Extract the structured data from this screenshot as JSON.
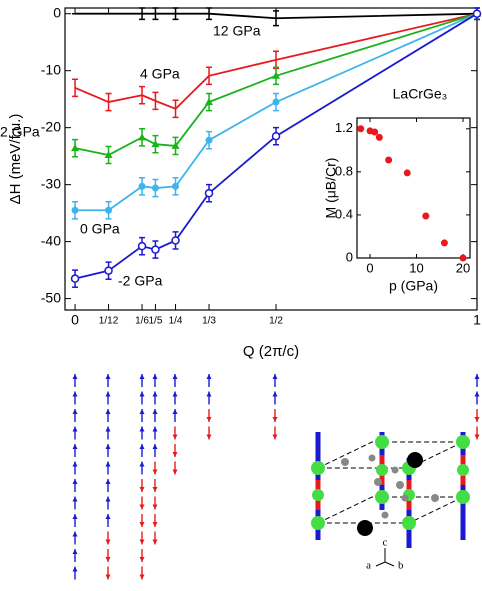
{
  "chart_data": [
    {
      "type": "line",
      "x": [
        0,
        0.08333,
        0.16667,
        0.2,
        0.25,
        0.33333,
        0.5,
        1
      ],
      "xlim": [
        -0.025,
        1
      ],
      "xticks": [
        {
          "value": 0,
          "label": "0"
        },
        {
          "value": 0.08333,
          "label": "1/12"
        },
        {
          "value": 0.16667,
          "label": "1/6"
        },
        {
          "value": 0.2,
          "label": "1/5"
        },
        {
          "value": 0.25,
          "label": "1/4"
        },
        {
          "value": 0.33333,
          "label": "1/3"
        },
        {
          "value": 0.5,
          "label": "1/2"
        },
        {
          "value": 1,
          "label": "1"
        }
      ],
      "ylim": [
        -52,
        1
      ],
      "yticks": [
        0,
        -10,
        -20,
        -30,
        -40,
        -50
      ],
      "xlabel": "Q (2π/c)",
      "ylabel": "ΔH (meV/f.u.)",
      "series": [
        {
          "name": "12 GPa",
          "color": "#000000",
          "marker": "none",
          "values": [
            0,
            0,
            0,
            0,
            0,
            0,
            -0.8,
            0
          ],
          "errors": [
            0,
            0,
            1,
            1,
            1,
            1,
            1.3,
            0
          ]
        },
        {
          "name": "4 GPa",
          "color": "#e8191c",
          "marker": "none",
          "values": [
            -13,
            -15.5,
            -14.3,
            -15.3,
            -16.7,
            -10.9,
            -8.1,
            0
          ],
          "errors": [
            1.5,
            1.5,
            1.5,
            1.5,
            1.5,
            1.5,
            1.5,
            1
          ]
        },
        {
          "name": "2 GPa",
          "color": "#19b219",
          "marker": "triangle",
          "values": [
            -23.6,
            -24.8,
            -21.7,
            -22.9,
            -23.2,
            -15.5,
            -10.9,
            0
          ],
          "errors": [
            1.5,
            1.5,
            1.5,
            1.5,
            1.5,
            1.5,
            1.5,
            1
          ]
        },
        {
          "name": "0 GPa",
          "color": "#3fb4ec",
          "marker": "circle",
          "values": [
            -34.5,
            -34.5,
            -30.3,
            -30.6,
            -30.3,
            -22.2,
            -15.5,
            0
          ],
          "errors": [
            1.5,
            1.5,
            1.5,
            1.5,
            1.5,
            1.5,
            1.5,
            1
          ]
        },
        {
          "name": "-2 GPa",
          "color": "#1a1ad0",
          "marker": "open-circle",
          "values": [
            -46.5,
            -45.1,
            -40.8,
            -41.4,
            -39.8,
            -31.5,
            -21.5,
            0
          ],
          "errors": [
            1.5,
            1.5,
            1.5,
            1.5,
            1.5,
            1.5,
            1.5,
            1
          ]
        }
      ]
    },
    {
      "type": "scatter",
      "title": "LaCrGe₃",
      "x": [
        -2,
        0,
        1,
        2,
        4,
        8,
        12,
        16,
        20
      ],
      "values": [
        1.2,
        1.18,
        1.17,
        1.12,
        0.91,
        0.79,
        0.39,
        0.14,
        0
      ],
      "color": "#e8191c",
      "xlim": [
        -2.8,
        21.5
      ],
      "xticks": [
        0,
        10,
        20
      ],
      "ylim": [
        0,
        1.3
      ],
      "yticks": [
        0,
        0.4,
        0.8,
        1.2
      ],
      "xlabel": "p (GPa)",
      "ylabel": "M (μB/Cr)"
    }
  ],
  "crystal_axes": [
    "c",
    "a",
    "b"
  ]
}
